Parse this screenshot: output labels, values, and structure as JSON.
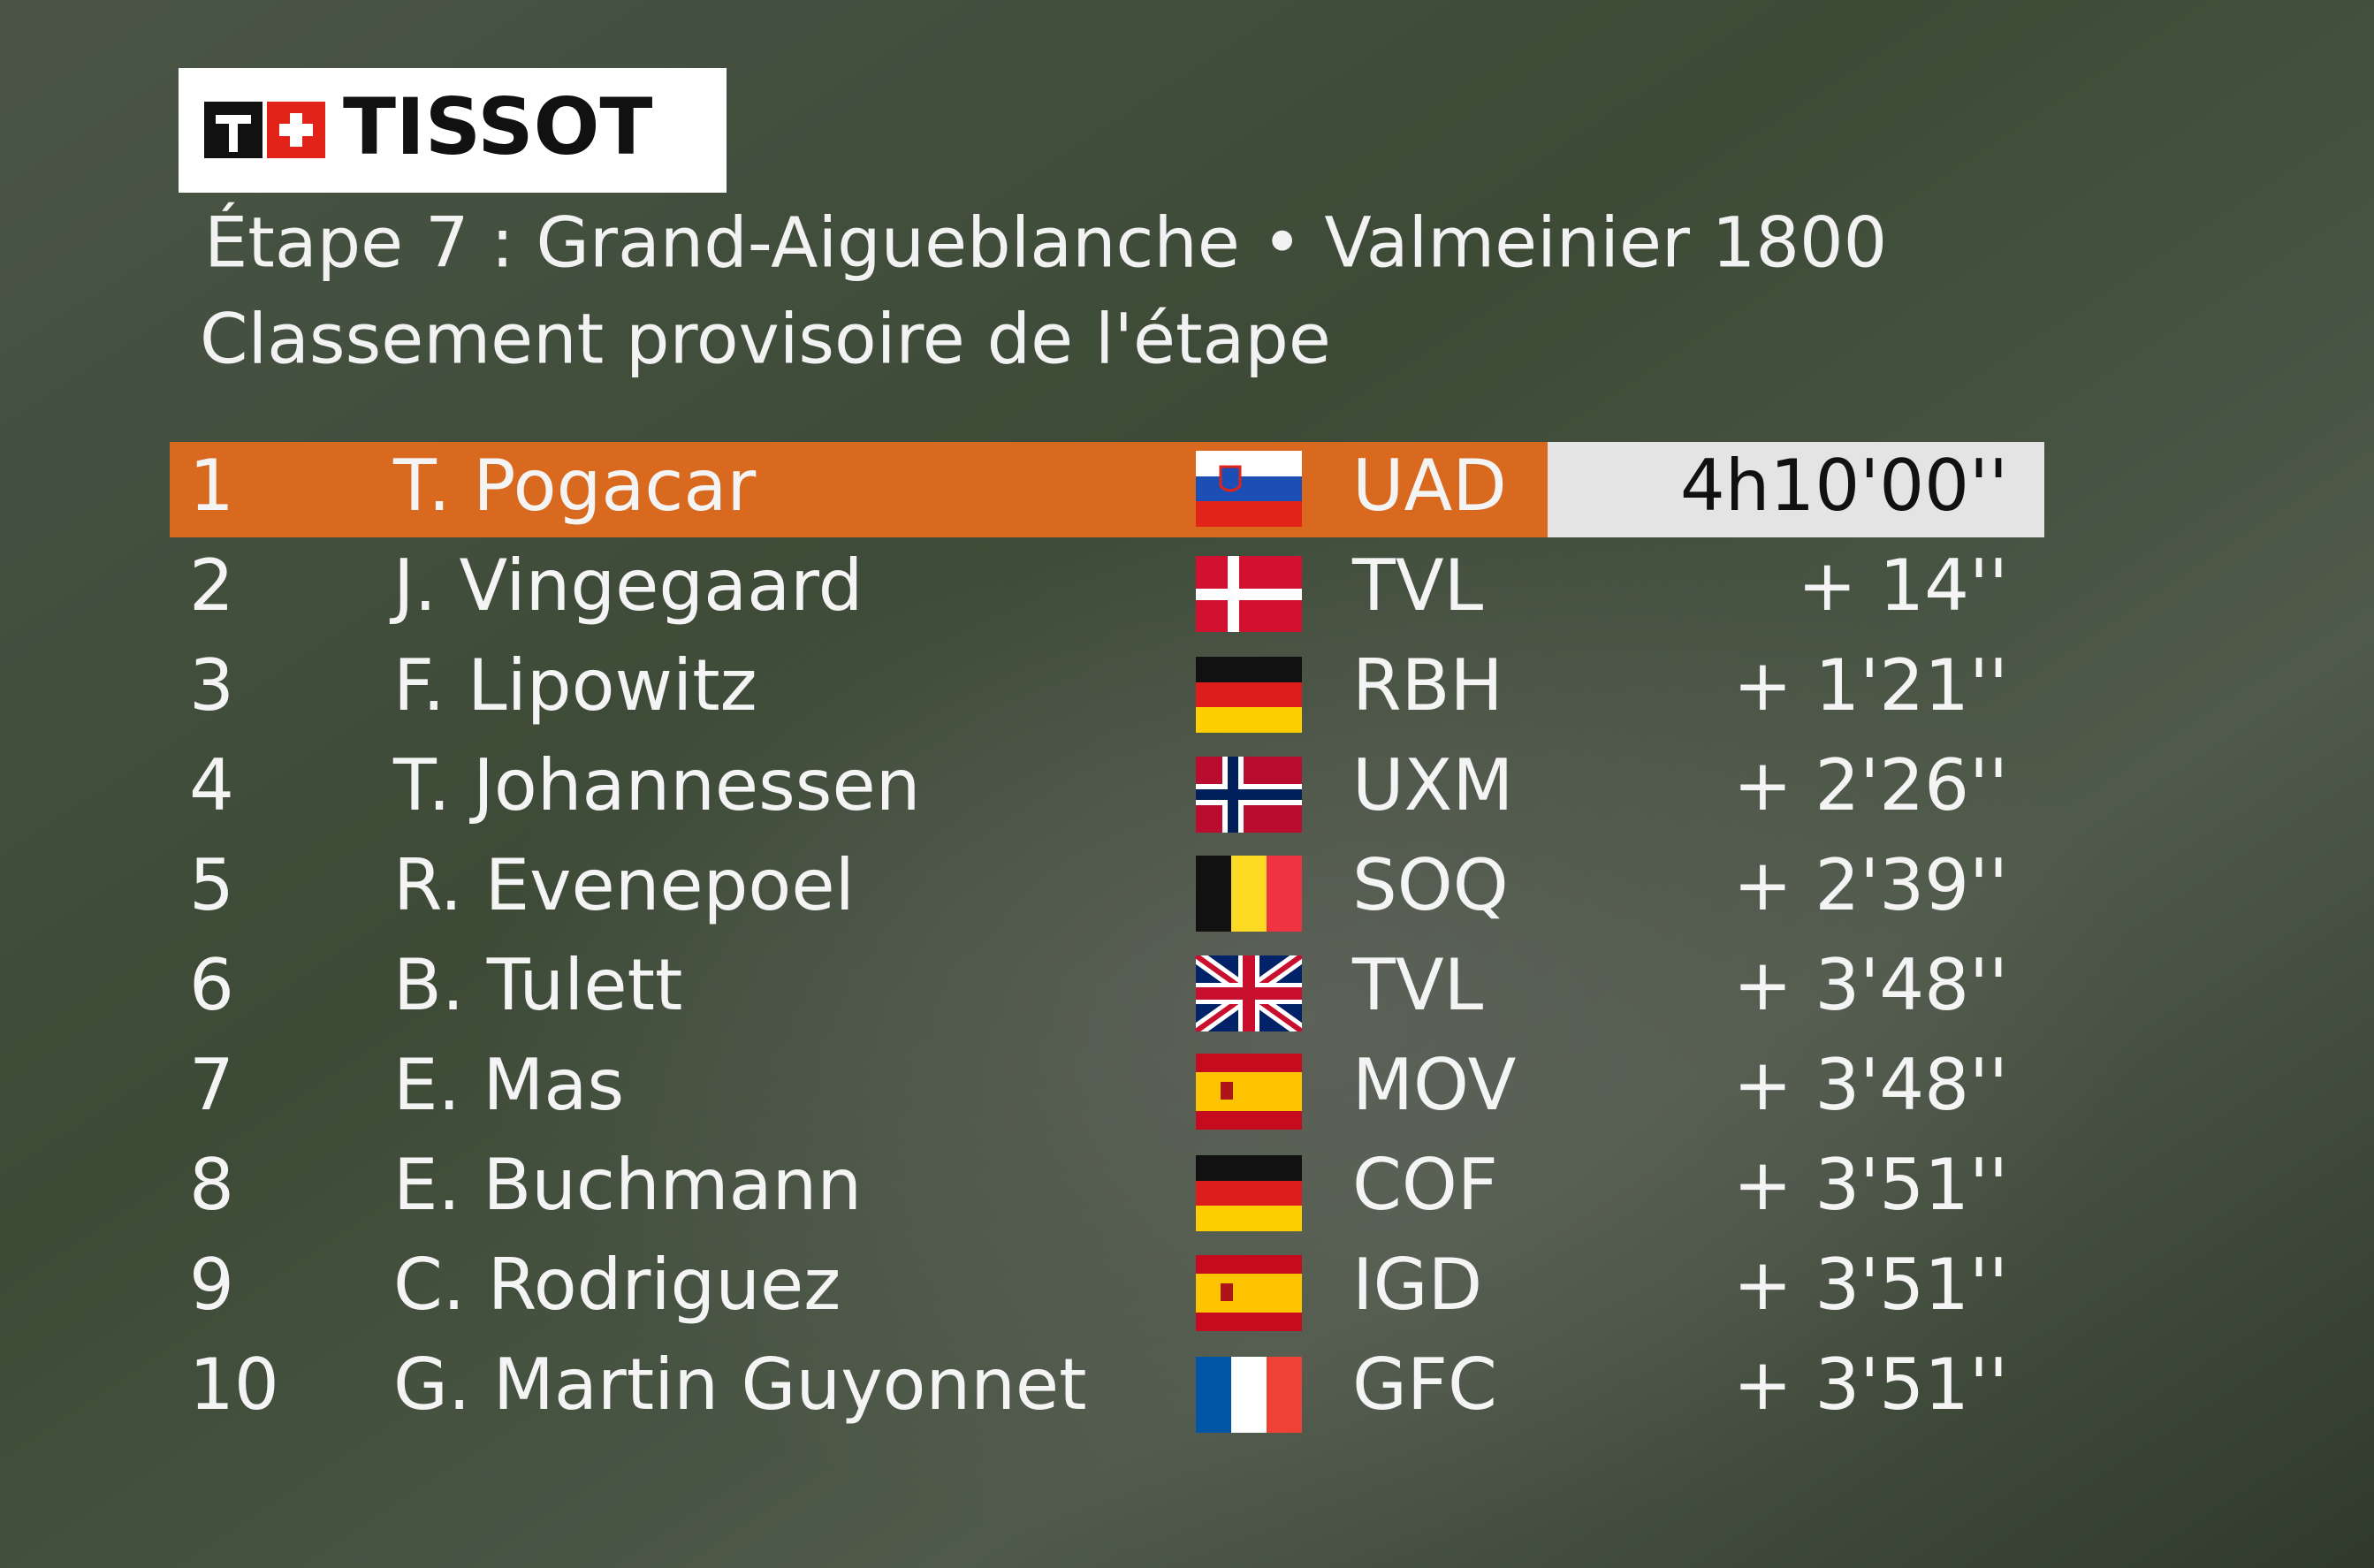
{
  "header": {
    "logo": "TISSOT",
    "title": "Étape 7 : Grand-Aigueblanche •  Valmeinier 1800",
    "subtitle": "Classement provisoire de l'étape"
  },
  "table": {
    "rows": [
      {
        "rank": "1",
        "name": "T. Pogacar",
        "team": "UAD",
        "time": "4h10'00''"
      },
      {
        "rank": "2",
        "name": "J. Vingegaard",
        "team": "TVL",
        "time": "+  14''"
      },
      {
        "rank": "3",
        "name": "F. Lipowitz",
        "team": "RBH",
        "time": "+  1'21''"
      },
      {
        "rank": "4",
        "name": "T. Johannessen",
        "team": "UXM",
        "time": "+  2'26''"
      },
      {
        "rank": "5",
        "name": "R. Evenepoel",
        "team": "SOQ",
        "time": "+  2'39''"
      },
      {
        "rank": "6",
        "name": "B. Tulett",
        "team": "TVL",
        "time": "+  3'48''"
      },
      {
        "rank": "7",
        "name": "E. Mas",
        "team": "MOV",
        "time": "+  3'48''"
      },
      {
        "rank": "8",
        "name": "E. Buchmann",
        "team": "COF",
        "time": "+  3'51''"
      },
      {
        "rank": "9",
        "name": "C. Rodriguez",
        "team": "IGD",
        "time": "+  3'51''"
      },
      {
        "rank": "10",
        "name": "G. Martin Guyonnet",
        "team": "GFC",
        "time": "+  3'51''"
      }
    ]
  }
}
